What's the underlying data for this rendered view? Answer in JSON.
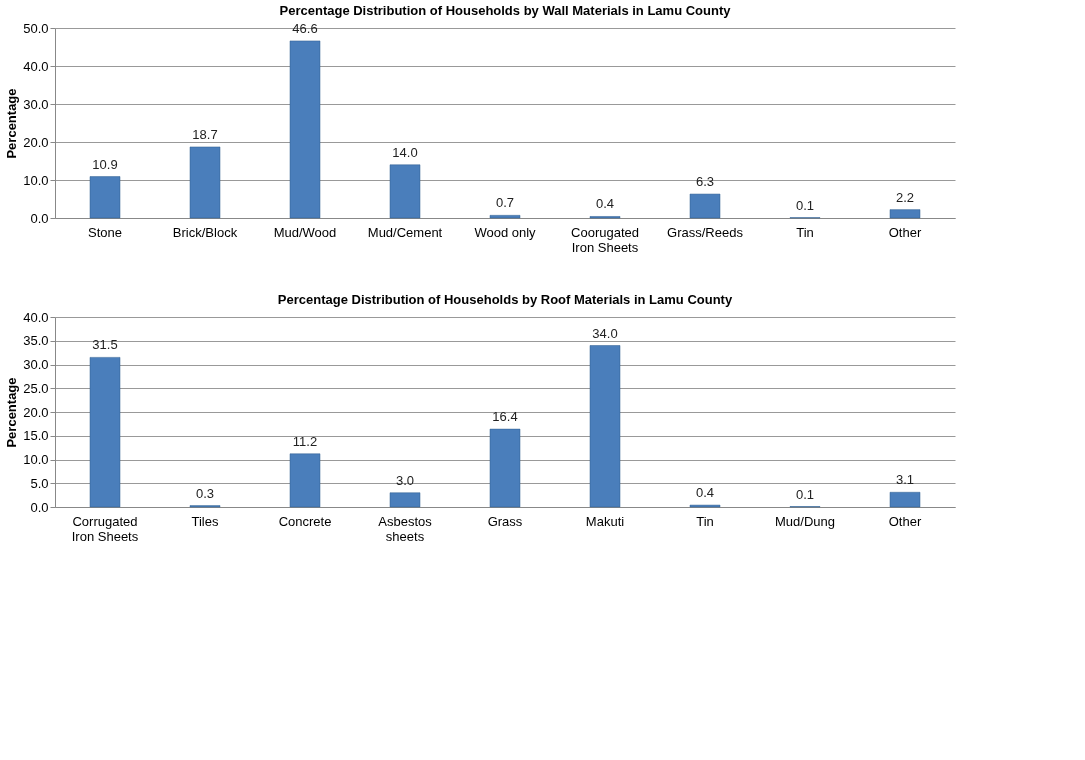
{
  "chart_data": [
    {
      "type": "bar",
      "title": "Percentage Distribution of Households by Wall Materials in Lamu County",
      "ylabel": "Percentage",
      "categories": [
        "Stone",
        "Brick/Block",
        "Mud/Wood",
        "Mud/Cement",
        "Wood only",
        "Coorugated Iron Sheets",
        "Grass/Reeds",
        "Tin",
        "Other"
      ],
      "values": [
        10.9,
        18.7,
        46.6,
        14.0,
        0.7,
        0.4,
        6.3,
        0.1,
        2.2
      ],
      "color": "#4a7ebb",
      "ylim": [
        0,
        50
      ],
      "yticks": [
        {
          "value": 0,
          "label": "0.0"
        },
        {
          "value": 10,
          "label": "10.0"
        },
        {
          "value": 20,
          "label": "20.0"
        },
        {
          "value": 30,
          "label": "30.0"
        },
        {
          "value": 40,
          "label": "40.0"
        },
        {
          "value": 50,
          "label": "50.0"
        }
      ],
      "grid": "y",
      "value_labels": [
        "10.9",
        "18.7",
        "46.6",
        "14.0",
        "0.7",
        "0.4",
        "6.3",
        "0.1",
        "2.2"
      ]
    },
    {
      "type": "bar",
      "title": "Percentage Distribution of Households by Roof Materials in Lamu County",
      "ylabel": "Percentage",
      "categories": [
        "Corrugated Iron Sheets",
        "Tiles",
        "Concrete",
        "Asbestos sheets",
        "Grass",
        "Makuti",
        "Tin",
        "Mud/Dung",
        "Other"
      ],
      "values": [
        31.5,
        0.3,
        11.2,
        3.0,
        16.4,
        34.0,
        0.4,
        0.1,
        3.1
      ],
      "color": "#4a7ebb",
      "ylim": [
        0,
        40
      ],
      "yticks": [
        {
          "value": 0,
          "label": "0.0"
        },
        {
          "value": 5,
          "label": "5.0"
        },
        {
          "value": 10,
          "label": "10.0"
        },
        {
          "value": 15,
          "label": "15.0"
        },
        {
          "value": 20,
          "label": "20.0"
        },
        {
          "value": 25,
          "label": "25.0"
        },
        {
          "value": 30,
          "label": "30.0"
        },
        {
          "value": 35,
          "label": "35.0"
        },
        {
          "value": 40,
          "label": "40.0"
        }
      ],
      "grid": "y",
      "value_labels": [
        "31.5",
        "0.3",
        "11.2",
        "3.0",
        "16.4",
        "34.0",
        "0.4",
        "0.1",
        "3.1"
      ]
    }
  ]
}
